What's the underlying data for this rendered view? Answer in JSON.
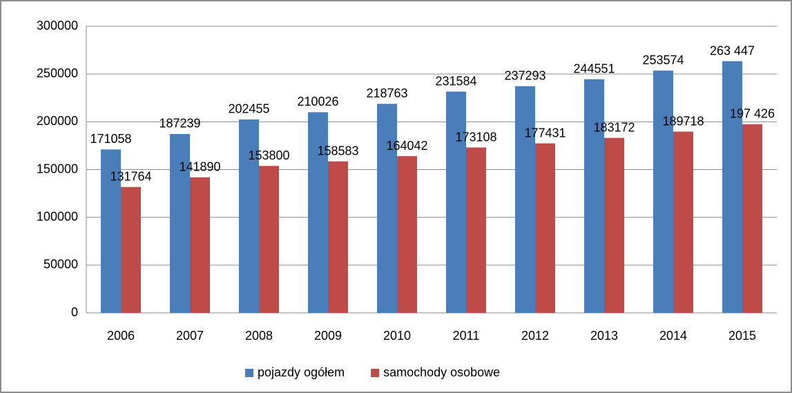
{
  "chart_data": {
    "type": "bar",
    "categories": [
      "2006",
      "2007",
      "2008",
      "2009",
      "2010",
      "2011",
      "2012",
      "2013",
      "2014",
      "2015"
    ],
    "series": [
      {
        "name": "pojazdy ogółem",
        "color": "#4a7ebb",
        "values": [
          171058,
          187239,
          202455,
          210026,
          218763,
          231584,
          237293,
          244551,
          253574,
          263447
        ],
        "value_labels": [
          "171058",
          "187239",
          "202455",
          "210026",
          "218763",
          "231584",
          "237293",
          "244551",
          "253574",
          "263 447"
        ]
      },
      {
        "name": "samochody osobowe",
        "color": "#be4b48",
        "values": [
          131764,
          141890,
          153800,
          158583,
          164042,
          173108,
          177431,
          183172,
          189718,
          197426
        ],
        "value_labels": [
          "131764",
          "141890",
          "153800",
          "158583",
          "164042",
          "173108",
          "177431",
          "183172",
          "189718",
          "197 426"
        ]
      }
    ],
    "ylim": [
      0,
      300000
    ],
    "yticks": [
      0,
      50000,
      100000,
      150000,
      200000,
      250000,
      300000
    ],
    "grid": true,
    "legend": "bottom"
  }
}
